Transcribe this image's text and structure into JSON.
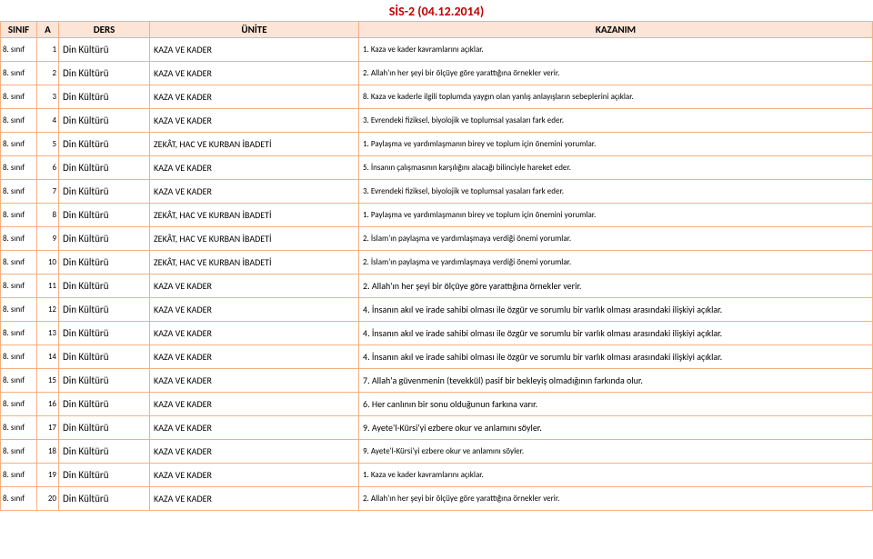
{
  "title": "SİS-2 (04.12.2014)",
  "headers": {
    "sinif": "SINIF",
    "a": "A",
    "ders": "DERS",
    "unite": "ÜNİTE",
    "kazanim": "KAZANIM"
  },
  "rows": [
    {
      "sinif": "8. sınıf",
      "a": "1",
      "ders": "Din Kültürü",
      "unite": "KAZA VE KADER",
      "kazanim": "1. Kaza ve kader kavramlarını açıklar.",
      "big": false
    },
    {
      "sinif": "8. sınıf",
      "a": "2",
      "ders": "Din Kültürü",
      "unite": "KAZA VE KADER",
      "kazanim": "2. Allah'ın her şeyi bir ölçüye göre yarattığına örnekler verir.",
      "big": false
    },
    {
      "sinif": "8. sınıf",
      "a": "3",
      "ders": "Din Kültürü",
      "unite": "KAZA VE KADER",
      "kazanim": "8. Kaza ve kaderle ilgili toplumda yaygın olan yanlış anlayışların sebeplerini açıklar.",
      "big": false
    },
    {
      "sinif": "8. sınıf",
      "a": "4",
      "ders": "Din Kültürü",
      "unite": "KAZA VE KADER",
      "kazanim": "3. Evrendeki fiziksel, biyolojik ve toplumsal yasaları fark eder.",
      "big": false
    },
    {
      "sinif": "8. sınıf",
      "a": "5",
      "ders": "Din Kültürü",
      "unite": "ZEKÂT, HAC VE KURBAN İBADETİ",
      "kazanim": "1. Paylaşma ve yardımlaşmanın birey ve toplum için önemini yorumlar.",
      "big": false
    },
    {
      "sinif": "8. sınıf",
      "a": "6",
      "ders": "Din Kültürü",
      "unite": "KAZA VE KADER",
      "kazanim": "5. İnsanın çalışmasının karşılığını alacağı bilinciyle hareket eder.",
      "big": false
    },
    {
      "sinif": "8. sınıf",
      "a": "7",
      "ders": "Din Kültürü",
      "unite": "KAZA VE KADER",
      "kazanim": "3. Evrendeki fiziksel, biyolojik ve toplumsal yasaları fark eder.",
      "big": false
    },
    {
      "sinif": "8. sınıf",
      "a": "8",
      "ders": "Din Kültürü",
      "unite": "ZEKÂT, HAC VE KURBAN İBADETİ",
      "kazanim": "1. Paylaşma ve yardımlaşmanın birey ve toplum için önemini yorumlar.",
      "big": false
    },
    {
      "sinif": "8. sınıf",
      "a": "9",
      "ders": "Din Kültürü",
      "unite": "ZEKÂT, HAC VE KURBAN İBADETİ",
      "kazanim": "2. İslam'ın paylaşma ve yardımlaşmaya verdiği önemi yorumlar.",
      "big": false
    },
    {
      "sinif": "8. sınıf",
      "a": "10",
      "ders": "Din Kültürü",
      "unite": "ZEKÂT, HAC VE KURBAN İBADETİ",
      "kazanim": "2. İslam'ın paylaşma ve yardımlaşmaya verdiği önemi yorumlar.",
      "big": false
    },
    {
      "sinif": "8. sınıf",
      "a": "11",
      "ders": "Din Kültürü",
      "unite": "KAZA VE KADER",
      "kazanim": "2. Allah'ın her şeyi bir ölçüye göre yarattığına örnekler verir.",
      "big": true
    },
    {
      "sinif": "8. sınıf",
      "a": "12",
      "ders": "Din Kültürü",
      "unite": "KAZA VE KADER",
      "kazanim": "4. İnsanın akıl ve irade sahibi olması ile özgür ve sorumlu bir varlık olması arasındaki ilişkiyi açıklar.",
      "big": true
    },
    {
      "sinif": "8. sınıf",
      "a": "13",
      "ders": "Din Kültürü",
      "unite": "KAZA VE KADER",
      "kazanim": "4. İnsanın akıl ve irade sahibi olması ile özgür ve sorumlu bir varlık olması arasındaki ilişkiyi açıklar.",
      "big": true
    },
    {
      "sinif": "8. sınıf",
      "a": "14",
      "ders": "Din Kültürü",
      "unite": "KAZA VE KADER",
      "kazanim": "4. İnsanın akıl ve irade sahibi olması ile özgür ve sorumlu bir varlık olması arasındaki ilişkiyi açıklar.",
      "big": true
    },
    {
      "sinif": "8. sınıf",
      "a": "15",
      "ders": "Din Kültürü",
      "unite": "KAZA VE KADER",
      "kazanim": "7. Allah'a güvenmenin (tevekkül) pasif bir bekleyiş olmadığının farkında olur.",
      "big": true
    },
    {
      "sinif": "8. sınıf",
      "a": "16",
      "ders": "Din Kültürü",
      "unite": "KAZA VE KADER",
      "kazanim": "6. Her canlının bir sonu olduğunun farkına varır.",
      "big": true
    },
    {
      "sinif": "8. sınıf",
      "a": "17",
      "ders": "Din Kültürü",
      "unite": "KAZA VE KADER",
      "kazanim": "9. Ayete'l-Kürsi'yi ezbere okur ve anlamını söyler.",
      "big": true
    },
    {
      "sinif": "8. sınıf",
      "a": "18",
      "ders": "Din Kültürü",
      "unite": "KAZA VE KADER",
      "kazanim": "9. Ayete'l-Kürsi'yi ezbere okur ve anlamını söyler.",
      "big": false
    },
    {
      "sinif": "8. sınıf",
      "a": "19",
      "ders": "Din Kültürü",
      "unite": "KAZA VE KADER",
      "kazanim": "1. Kaza ve kader kavramlarını açıklar.",
      "big": false
    },
    {
      "sinif": "8. sınıf",
      "a": "20",
      "ders": "Din Kültürü",
      "unite": "KAZA VE KADER",
      "kazanim": "2. Allah'ın her şeyi bir ölçüye göre yarattığına örnekler verir.",
      "big": false
    }
  ],
  "colors": {
    "title": "#c00000",
    "header_bg": "#fce4d6",
    "border": "#f4b084",
    "cell_bg": "#ffffff"
  }
}
